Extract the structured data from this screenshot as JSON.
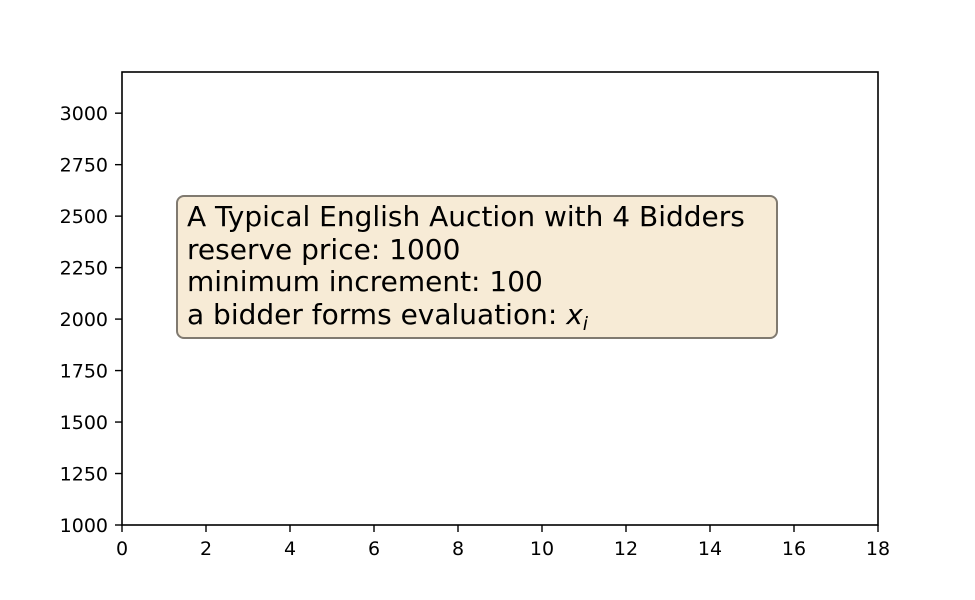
{
  "chart_data": {
    "type": "line",
    "title": "",
    "xlabel": "",
    "ylabel": "",
    "xlim": [
      0,
      18
    ],
    "ylim": [
      1000,
      3200
    ],
    "x_ticks": [
      0,
      2,
      4,
      6,
      8,
      10,
      12,
      14,
      16,
      18
    ],
    "x_tick_labels": [
      "0",
      "2",
      "4",
      "6",
      "8",
      "10",
      "12",
      "14",
      "16",
      "18"
    ],
    "y_ticks": [
      1000,
      1250,
      1500,
      1750,
      2000,
      2250,
      2500,
      2750,
      3000
    ],
    "y_tick_labels": [
      "1000",
      "1250",
      "1500",
      "1750",
      "2000",
      "2250",
      "2500",
      "2750",
      "3000"
    ],
    "grid": false,
    "series": [],
    "annotation": {
      "lines": [
        "A Typical English Auction with 4 Bidders",
        "reserve price: 1000",
        "minimum increment: 100",
        "a bidder forms evaluation: "
      ],
      "math_variable": "x",
      "math_subscript": "i",
      "box_color": "#f7ebd6",
      "border_color": "#807a70"
    }
  }
}
